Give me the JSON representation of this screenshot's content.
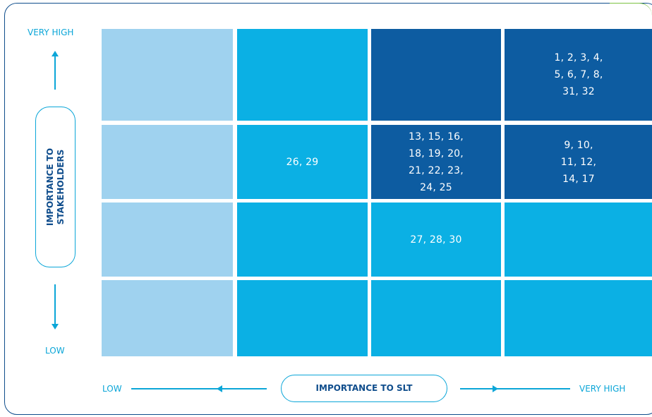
{
  "y_axis": {
    "high_label": "VERY HIGH",
    "low_label": "LOW",
    "title": "IMPORTANCE TO\nSTAKEHOLDERS"
  },
  "x_axis": {
    "low_label": "LOW",
    "high_label": "VERY HIGH",
    "title": "IMPORTANCE TO SLT"
  },
  "colors": {
    "light": "#9fd2ef",
    "medium": "#0bb0e4",
    "dark": "#0d5ca1",
    "accent": "#0ba6d8",
    "frame": "#0f4d8c"
  },
  "matrix": {
    "rows": [
      {
        "cells": [
          {
            "shade": "light",
            "text": ""
          },
          {
            "shade": "medium",
            "text": ""
          },
          {
            "shade": "dark",
            "text": ""
          },
          {
            "shade": "dark",
            "text": "1, 2, 3, 4,\n5, 6, 7, 8,\n31, 32"
          }
        ]
      },
      {
        "cells": [
          {
            "shade": "light",
            "text": ""
          },
          {
            "shade": "medium",
            "text": "26, 29"
          },
          {
            "shade": "dark",
            "text": "13, 15, 16,\n18, 19, 20,\n21, 22, 23,\n24, 25"
          },
          {
            "shade": "dark",
            "text": "9, 10,\n11, 12,\n14, 17"
          }
        ]
      },
      {
        "cells": [
          {
            "shade": "light",
            "text": ""
          },
          {
            "shade": "medium",
            "text": ""
          },
          {
            "shade": "medium",
            "text": "27, 28, 30"
          },
          {
            "shade": "medium",
            "text": ""
          }
        ]
      },
      {
        "cells": [
          {
            "shade": "light",
            "text": ""
          },
          {
            "shade": "medium",
            "text": ""
          },
          {
            "shade": "medium",
            "text": ""
          },
          {
            "shade": "medium",
            "text": ""
          }
        ]
      }
    ]
  }
}
